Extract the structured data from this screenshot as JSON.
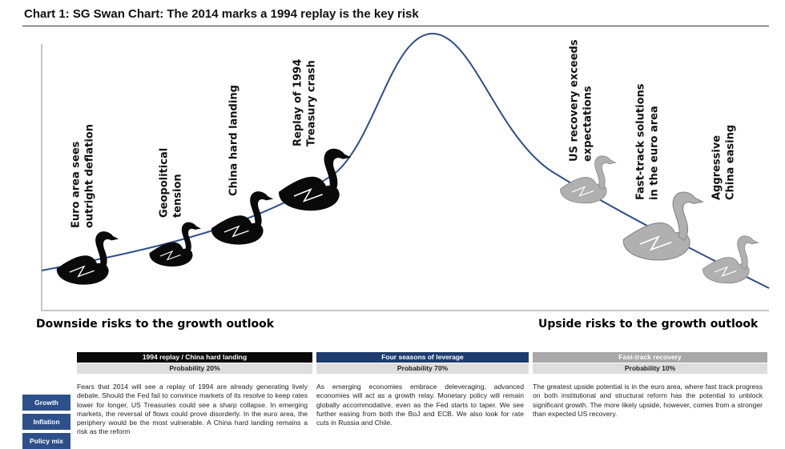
{
  "title": "Chart 1: SG Swan Chart: The 2014 marks a 1994 replay is the key risk",
  "swans": [
    {
      "lines": [
        "Euro area sees",
        "outright deflation"
      ],
      "tone": "dark"
    },
    {
      "lines": [
        "Geopolitical",
        "tension"
      ],
      "tone": "dark"
    },
    {
      "lines": [
        "China hard landing"
      ],
      "tone": "dark"
    },
    {
      "lines": [
        "Replay of 1994",
        "Treasury crash"
      ],
      "tone": "dark"
    },
    {
      "lines": [
        "US recovery exceeds",
        "expectations"
      ],
      "tone": "light"
    },
    {
      "lines": [
        "Fast-track solutions",
        "in the euro area"
      ],
      "tone": "light"
    },
    {
      "lines": [
        "Aggressive",
        "China easing"
      ],
      "tone": "light"
    }
  ],
  "axis": {
    "left": "Downside risks to the growth outlook",
    "right": "Upside risks to the growth outlook"
  },
  "rows": [
    "Growth",
    "Inflation",
    "Policy mix"
  ],
  "scenarios": [
    {
      "name": "1994 replay / China hard landing",
      "probability": "Probability 20%",
      "text": "Fears that 2014 will see a replay of 1994 are already generating lively debate. Should the Fed fail to convince markets of its resolve to keep rates lower for longer, US Treasuries could see a sharp collapse. In emerging markets, the reversal of flows could prove disorderly. In the euro area, the periphery would be the most vulnerable. A China hard landing remains a risk as the reform"
    },
    {
      "name": "Four seasons of leverage",
      "probability": "Probability 70%",
      "text": "As emerging economies embrace deleveraging, advanced economies will act as a growth relay. Monetary policy will remain globally accommodative, even as the Fed starts to taper. We see further easing from both the BoJ and ECB. We also look for rate cuts in Russia and Chile."
    },
    {
      "name": "Fast-track recovery",
      "probability": "Probability 10%",
      "text": "The greatest upside potential is in the euro area, where fast track progress on both institutional and structural reform has the potential to unblock significant growth. The more likely upside, however, comes from a stronger than expected US recovery."
    }
  ]
}
